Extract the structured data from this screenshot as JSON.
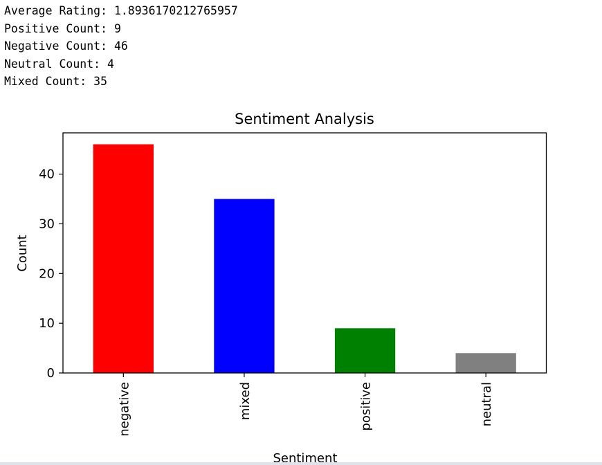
{
  "output_lines": [
    "Average Rating: 1.8936170212765957",
    "Positive Count: 9",
    "Negative Count: 46",
    "Neutral Count: 4",
    "Mixed Count: 35"
  ],
  "chart_data": {
    "type": "bar",
    "title": "Sentiment Analysis",
    "xlabel": "Sentiment",
    "ylabel": "Count",
    "categories": [
      "negative",
      "mixed",
      "positive",
      "neutral"
    ],
    "values": [
      46,
      35,
      9,
      4
    ],
    "colors": [
      "#ff0000",
      "#0000ff",
      "#008000",
      "#808080"
    ],
    "yticks": [
      0,
      10,
      20,
      30,
      40
    ],
    "ylim": [
      0,
      48.3
    ],
    "grid": false,
    "legend": "none"
  }
}
